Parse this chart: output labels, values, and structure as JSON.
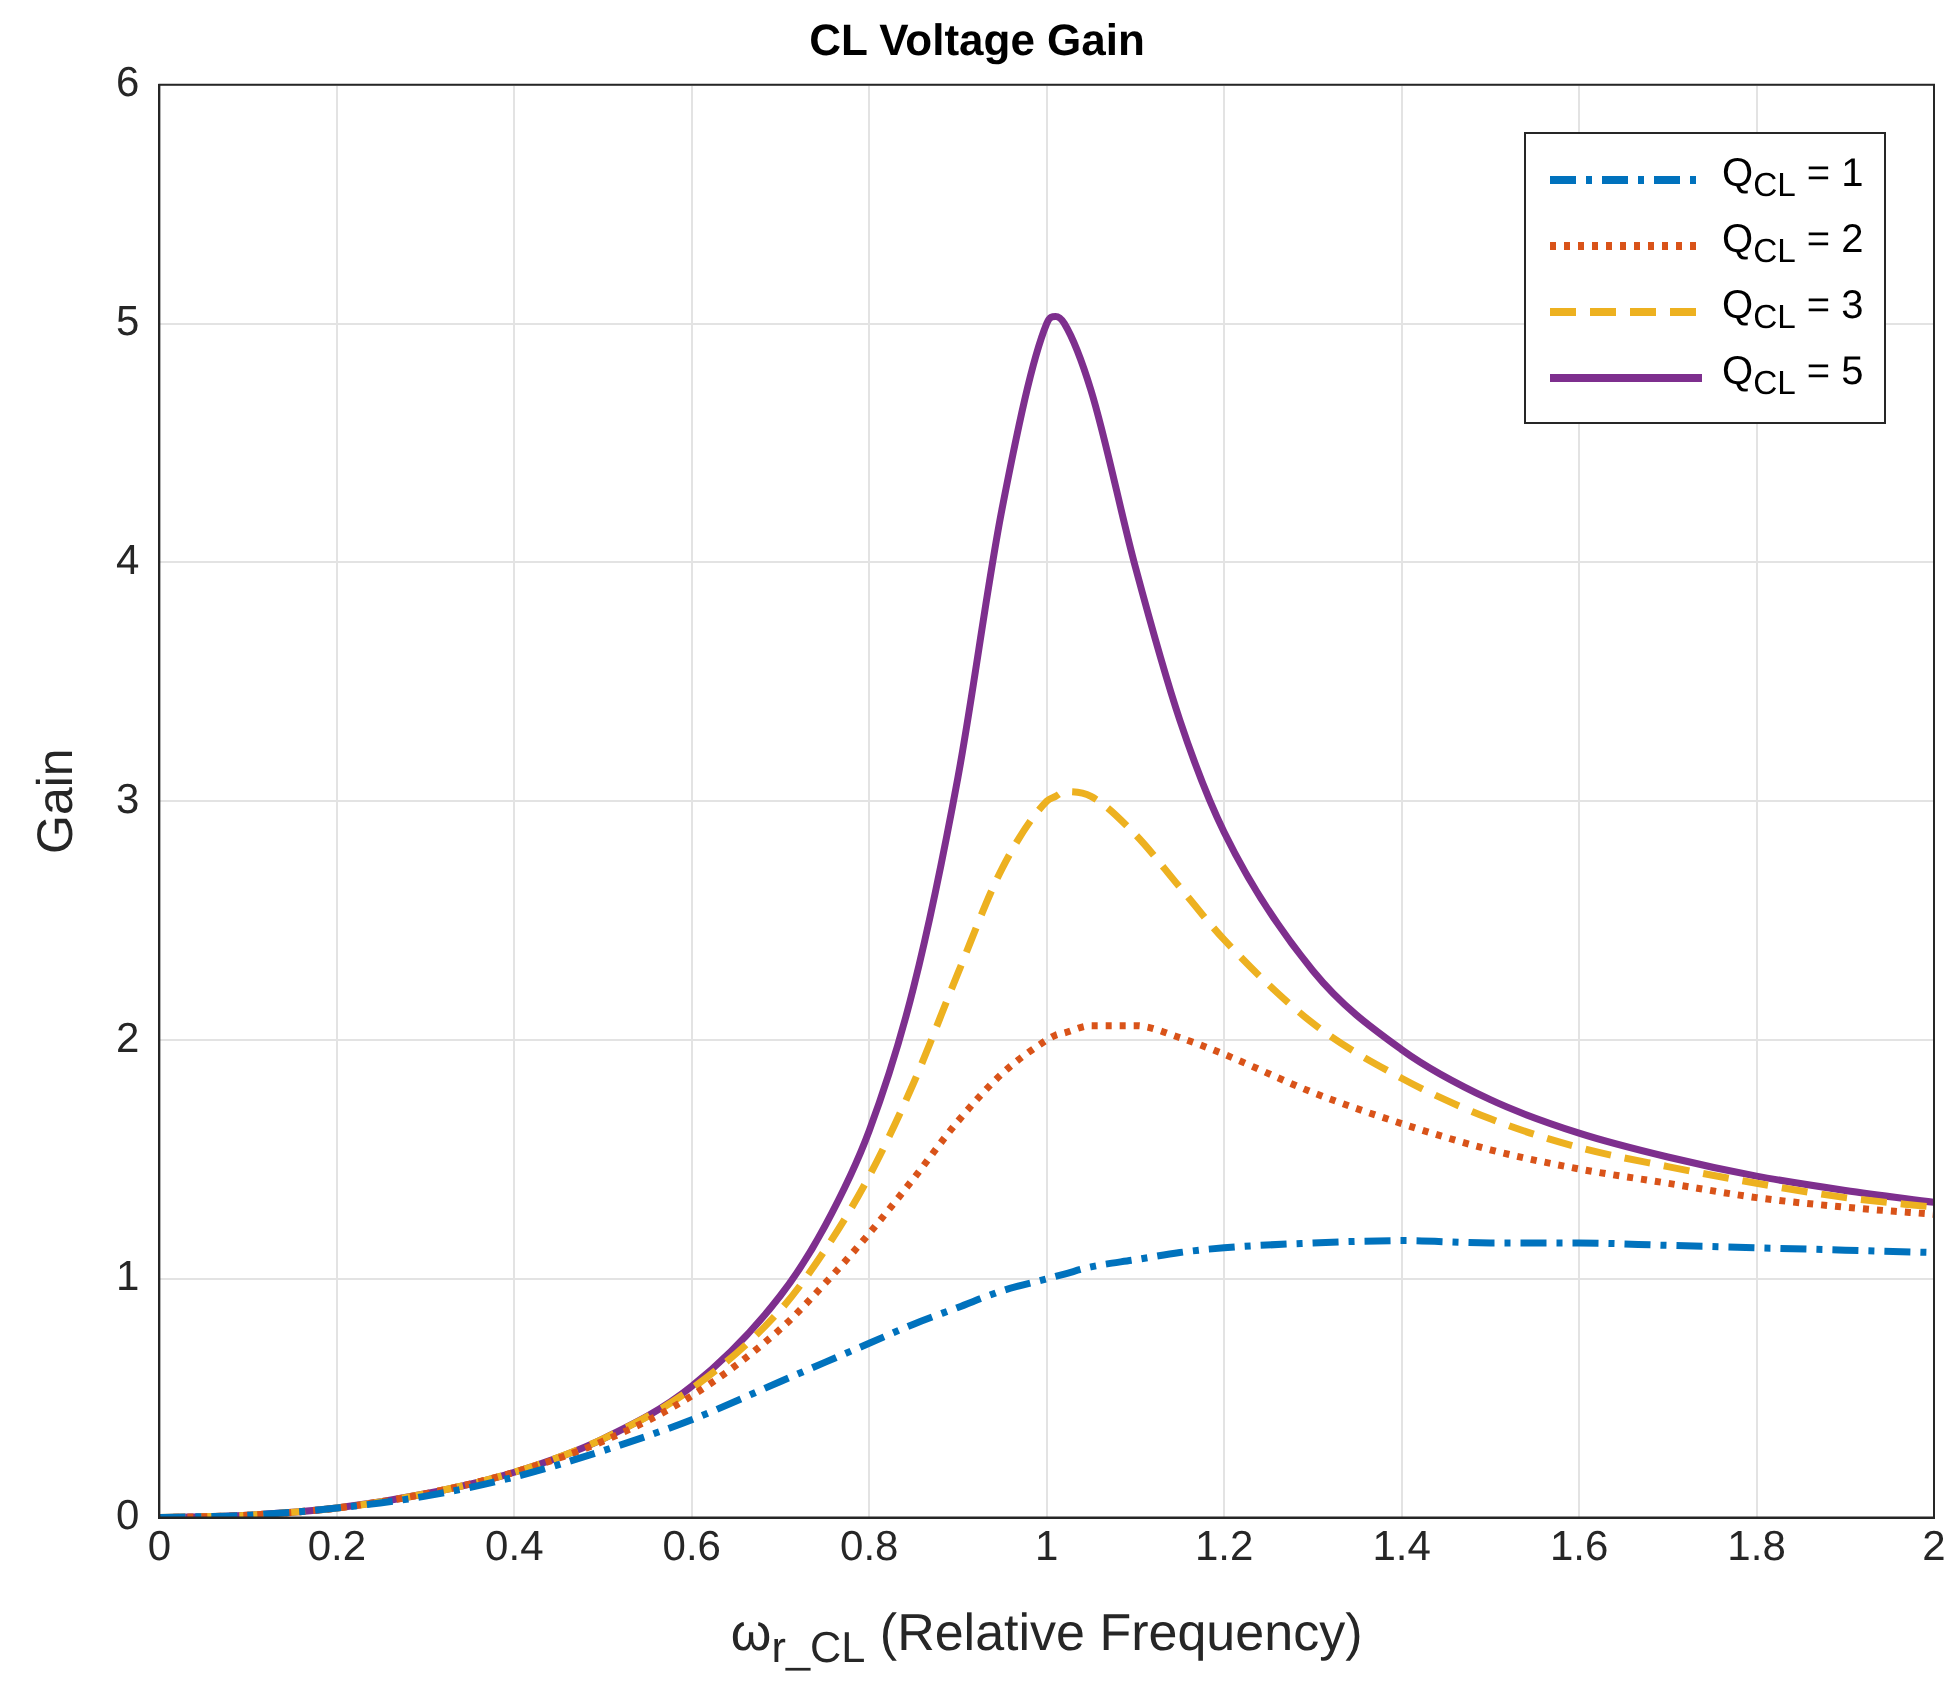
{
  "chart_data": {
    "type": "line",
    "title": "CL Voltage Gain",
    "xlabel": "ω$_{r_CL}$ (Relative Frequency)",
    "ylabel": "Gain",
    "x": [
      0,
      0.1,
      0.2,
      0.3,
      0.4,
      0.5,
      0.6,
      0.7,
      0.75,
      0.8,
      0.85,
      0.9,
      0.95,
      1,
      1.01,
      1.02,
      1.05,
      1.1,
      1.15,
      1.2,
      1.3,
      1.4,
      1.5,
      1.6,
      1.7,
      1.8,
      1.9,
      2
    ],
    "series": [
      {
        "name": "Q$_{CL}$ = 1",
        "color": "#0072bd",
        "line_style": "dashdot",
        "values": [
          0,
          0.01,
          0.04,
          0.09,
          0.17,
          0.28,
          0.41,
          0.57,
          0.65,
          0.73,
          0.81,
          0.88,
          0.95,
          1.0,
          1.01,
          1.02,
          1.05,
          1.08,
          1.11,
          1.13,
          1.15,
          1.16,
          1.15,
          1.15,
          1.14,
          1.13,
          1.12,
          1.11
        ]
      },
      {
        "name": "Q$_{CL}$ = 2",
        "color": "#d95319",
        "line_style": "dotted",
        "values": [
          0,
          0.01,
          0.04,
          0.1,
          0.19,
          0.32,
          0.51,
          0.79,
          0.98,
          1.19,
          1.42,
          1.66,
          1.86,
          2.0,
          2.02,
          2.03,
          2.06,
          2.06,
          2.01,
          1.94,
          1.78,
          1.65,
          1.54,
          1.46,
          1.4,
          1.34,
          1.3,
          1.27
        ]
      },
      {
        "name": "Q$_{CL}$ = 3",
        "color": "#edb120",
        "line_style": "dashed",
        "values": [
          0,
          0.01,
          0.04,
          0.1,
          0.19,
          0.33,
          0.54,
          0.87,
          1.12,
          1.43,
          1.82,
          2.28,
          2.72,
          3.0,
          3.02,
          3.04,
          3.02,
          2.86,
          2.64,
          2.42,
          2.07,
          1.84,
          1.67,
          1.55,
          1.47,
          1.4,
          1.34,
          1.3
        ]
      },
      {
        "name": "Q$_{CL}$ = 5",
        "color": "#7e2f8e",
        "line_style": "solid",
        "values": [
          0,
          0.01,
          0.04,
          0.1,
          0.19,
          0.33,
          0.55,
          0.93,
          1.22,
          1.62,
          2.22,
          3.1,
          4.23,
          5.0,
          5.03,
          5.0,
          4.72,
          3.98,
          3.34,
          2.87,
          2.29,
          1.96,
          1.75,
          1.61,
          1.51,
          1.43,
          1.37,
          1.32
        ]
      }
    ],
    "xlim": [
      0,
      2
    ],
    "xticks": [
      0,
      0.2,
      0.4,
      0.6,
      0.8,
      1,
      1.2,
      1.4,
      1.6,
      1.8,
      2
    ],
    "ylim": [
      0,
      6
    ],
    "yticks": [
      0,
      1,
      2,
      3,
      4,
      5,
      6
    ],
    "grid": true,
    "legend": "top right"
  }
}
